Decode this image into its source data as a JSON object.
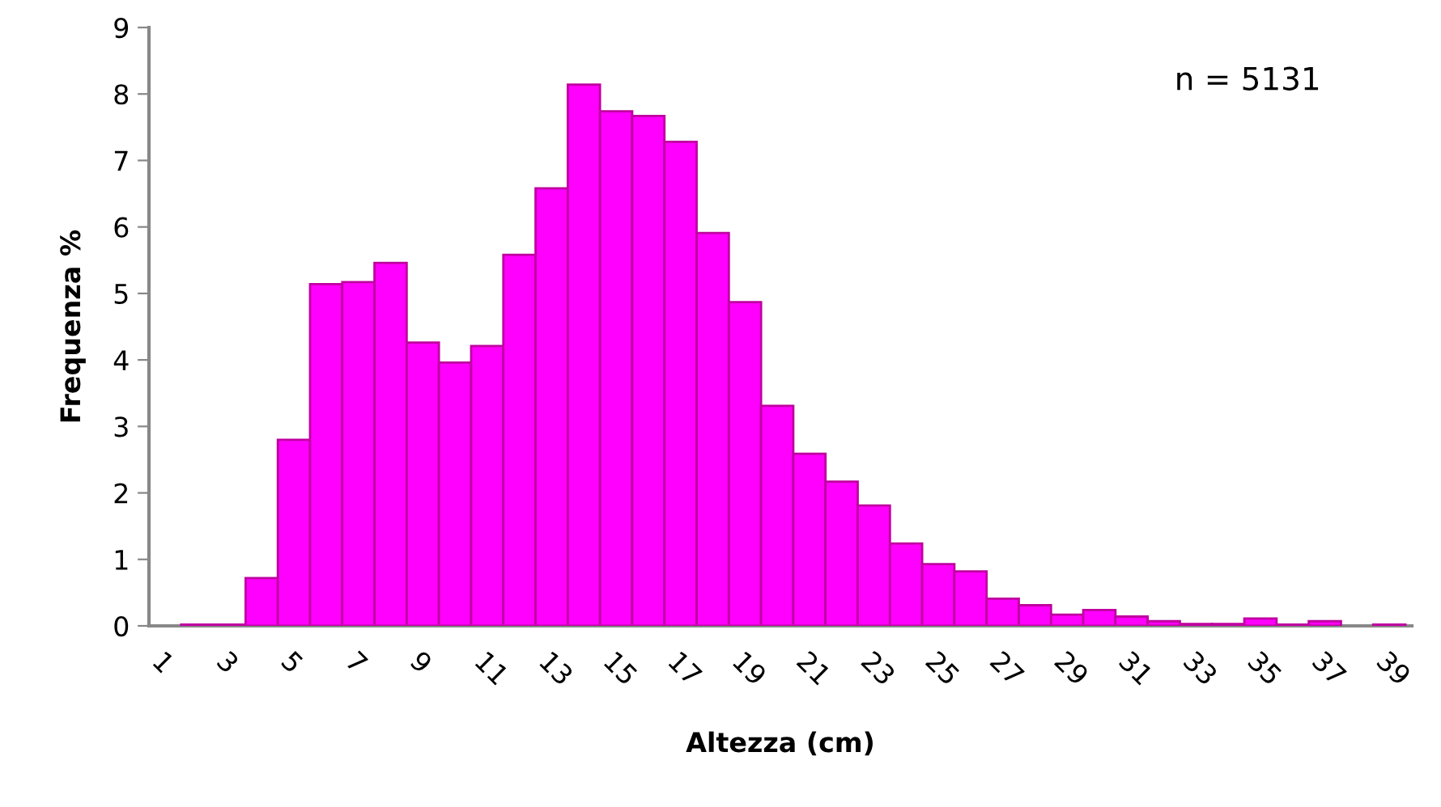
{
  "chart_data": {
    "type": "bar",
    "xlabel": "Altezza (cm)",
    "ylabel": "Frequenza %",
    "categories": [
      "1",
      null,
      "3",
      null,
      "5",
      null,
      "7",
      null,
      "9",
      null,
      "11",
      null,
      "13",
      null,
      "15",
      null,
      "17",
      null,
      "19",
      null,
      "21",
      null,
      "23",
      null,
      "25",
      null,
      "27",
      null,
      "29",
      null,
      "31",
      null,
      "33",
      null,
      "35",
      null,
      "37",
      null,
      "39"
    ],
    "values": [
      0,
      0.02,
      0.02,
      0.72,
      2.8,
      5.14,
      5.17,
      5.46,
      4.26,
      3.96,
      4.21,
      5.58,
      6.58,
      8.14,
      7.74,
      7.67,
      7.28,
      5.91,
      4.87,
      3.31,
      2.59,
      2.17,
      1.81,
      1.24,
      0.93,
      0.82,
      0.41,
      0.31,
      0.17,
      0.24,
      0.14,
      0.07,
      0.03,
      0.03,
      0.11,
      0.02,
      0.07,
      0,
      0.02
    ],
    "color": "#ff00ff",
    "ylim": [
      0,
      9
    ],
    "yticks": [
      0,
      1,
      2,
      3,
      4,
      5,
      6,
      7,
      8,
      9
    ],
    "grid": false,
    "legend": false,
    "annotations": [
      "n = 5131"
    ]
  }
}
